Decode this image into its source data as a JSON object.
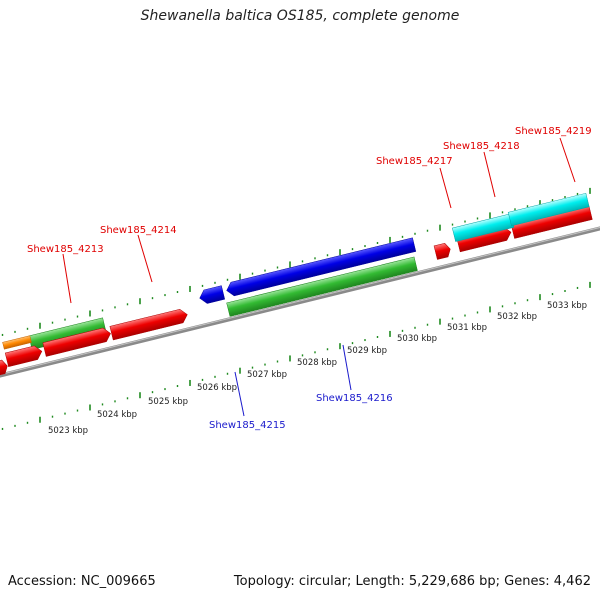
{
  "title": "Shewanella baltica OS185, complete genome",
  "footer": {
    "accession": "Accession: NC_009665",
    "summary": "Topology: circular; Length: 5,229,686 bp; Genes: 4,462"
  },
  "colors": {
    "forward_label": "#e00000",
    "reverse_label": "#1a1acc",
    "red_gene": "#ee0000",
    "blue_gene": "#0000e6",
    "green_gene": "#33bb33",
    "cyan_gene": "#00eeee",
    "orange_gene": "#ff8800",
    "backbone": "#8a8a8a",
    "ticks": "#1f8a1f"
  },
  "tick_labels": [
    "5023 kbp",
    "5024 kbp",
    "5025 kbp",
    "5026 kbp",
    "5027 kbp",
    "5028 kbp",
    "5029 kbp",
    "5030 kbp",
    "5031 kbp",
    "5032 kbp",
    "5033 kbp"
  ],
  "gene_labels": [
    {
      "text": "Shew185_4213",
      "strand": "forward"
    },
    {
      "text": "Shew185_4214",
      "strand": "forward"
    },
    {
      "text": "Shew185_4215",
      "strand": "reverse"
    },
    {
      "text": "Shew185_4216",
      "strand": "reverse"
    },
    {
      "text": "Shew185_4217",
      "strand": "forward"
    },
    {
      "text": "Shew185_4218",
      "strand": "forward"
    },
    {
      "text": "Shew185_4219",
      "strand": "forward"
    }
  ]
}
